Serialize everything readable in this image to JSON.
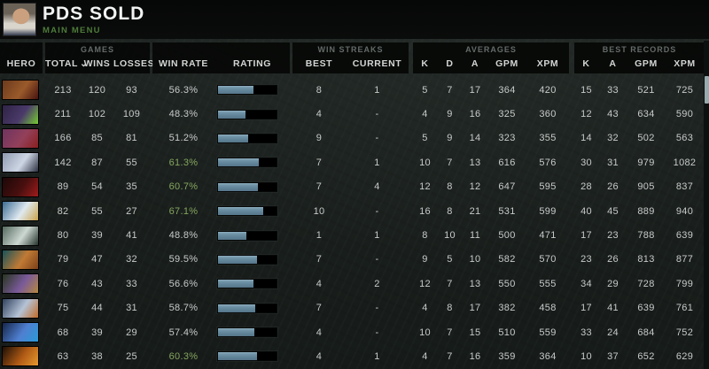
{
  "window": {
    "title": "PDS SOLD",
    "menu": "MAIN MENU"
  },
  "columns": {
    "hero": "HERO",
    "games_group": "GAMES",
    "total": "TOTAL",
    "sort_indicator": "⌄",
    "wins": "WINS",
    "losses": "LOSSES",
    "win_rate": "WIN RATE",
    "rating": "RATING",
    "streaks_group": "WIN STREAKS",
    "best": "BEST",
    "current": "CURRENT",
    "averages_group": "AVERAGES",
    "avg": [
      "K",
      "D",
      "A",
      "GPM",
      "XPM"
    ],
    "records_group": "BEST RECORDS",
    "rec": [
      "K",
      "A",
      "GPM",
      "XPM"
    ]
  },
  "colors": {
    "background": "#1b201e",
    "topbar": "#070808",
    "panel": "#050706",
    "row_text": "#c7cbc9",
    "win_rate_green": "#84a55e",
    "bar_fill": "#6d91a5",
    "menu_green": "#4e7b3a",
    "group_label": "#646b68",
    "column_label": "#d2d5d3",
    "scroll_thumb": "#97aaae",
    "avatar_colors": [
      "#6b6257",
      "#caa07f",
      "#d9d5cc",
      "#313a4e"
    ]
  },
  "rows": [
    {
      "total": 213,
      "wins": 120,
      "losses": 93,
      "win_rate": "56.3%",
      "green": false,
      "rating_pct": 60,
      "best": 8,
      "current": "1",
      "k": 5,
      "d": 7,
      "a": 17,
      "gpm": 364,
      "xpm": 420,
      "rk": 15,
      "ra": 33,
      "rgpm": 521,
      "rxpm": 725,
      "portrait": [
        "#6b3a1d",
        "#9a5a2a",
        "#471410"
      ]
    },
    {
      "total": 211,
      "wins": 102,
      "losses": 109,
      "win_rate": "48.3%",
      "green": false,
      "rating_pct": 47,
      "best": 4,
      "current": "-",
      "k": 4,
      "d": 9,
      "a": 16,
      "gpm": 325,
      "xpm": 360,
      "rk": 12,
      "ra": 43,
      "rgpm": 634,
      "rxpm": 590,
      "portrait": [
        "#2e2344",
        "#4a3a6a",
        "#77cc33"
      ]
    },
    {
      "total": 166,
      "wins": 85,
      "losses": 81,
      "win_rate": "51.2%",
      "green": false,
      "rating_pct": 52,
      "best": 9,
      "current": "-",
      "k": 5,
      "d": 9,
      "a": 14,
      "gpm": 323,
      "xpm": 355,
      "rk": 14,
      "ra": 32,
      "rgpm": 502,
      "rxpm": 563,
      "portrait": [
        "#6e3460",
        "#93405a",
        "#8a1f1f"
      ]
    },
    {
      "total": 142,
      "wins": 87,
      "losses": 55,
      "win_rate": "61.3%",
      "green": true,
      "rating_pct": 69,
      "best": 7,
      "current": "1",
      "k": 10,
      "d": 7,
      "a": 13,
      "gpm": 616,
      "xpm": 576,
      "rk": 30,
      "ra": 31,
      "rgpm": 979,
      "rxpm": 1082,
      "portrait": [
        "#8f9bb0",
        "#cdd6e4",
        "#2c3140"
      ]
    },
    {
      "total": 89,
      "wins": 54,
      "losses": 35,
      "win_rate": "60.7%",
      "green": true,
      "rating_pct": 68,
      "best": 7,
      "current": "4",
      "k": 12,
      "d": 8,
      "a": 12,
      "gpm": 647,
      "xpm": 595,
      "rk": 28,
      "ra": 26,
      "rgpm": 905,
      "rxpm": 837,
      "portrait": [
        "#1c0808",
        "#4a0f0f",
        "#a01c1c"
      ]
    },
    {
      "total": 82,
      "wins": 55,
      "losses": 27,
      "win_rate": "67.1%",
      "green": true,
      "rating_pct": 78,
      "best": 10,
      "current": "-",
      "k": 16,
      "d": 8,
      "a": 21,
      "gpm": 531,
      "xpm": 599,
      "rk": 40,
      "ra": 45,
      "rgpm": 889,
      "rxpm": 940,
      "portrait": [
        "#3b6c94",
        "#dfe9ef",
        "#caa24a"
      ]
    },
    {
      "total": 80,
      "wins": 39,
      "losses": 41,
      "win_rate": "48.8%",
      "green": false,
      "rating_pct": 48,
      "best": 1,
      "current": "1",
      "k": 8,
      "d": 10,
      "a": 11,
      "gpm": 500,
      "xpm": 471,
      "rk": 17,
      "ra": 23,
      "rgpm": 788,
      "rxpm": 639,
      "portrait": [
        "#55695f",
        "#cdd8d2",
        "#25332c"
      ]
    },
    {
      "total": 79,
      "wins": 47,
      "losses": 32,
      "win_rate": "59.5%",
      "green": false,
      "rating_pct": 66,
      "best": 7,
      "current": "-",
      "k": 9,
      "d": 5,
      "a": 10,
      "gpm": 582,
      "xpm": 570,
      "rk": 23,
      "ra": 26,
      "rgpm": 813,
      "rxpm": 877,
      "portrait": [
        "#17525a",
        "#c07a35",
        "#7a4018"
      ]
    },
    {
      "total": 76,
      "wins": 43,
      "losses": 33,
      "win_rate": "56.6%",
      "green": false,
      "rating_pct": 61,
      "best": 4,
      "current": "2",
      "k": 12,
      "d": 7,
      "a": 13,
      "gpm": 550,
      "xpm": 555,
      "rk": 34,
      "ra": 29,
      "rgpm": 728,
      "rxpm": 799,
      "portrait": [
        "#27351f",
        "#7a5a9a",
        "#b5893f"
      ]
    },
    {
      "total": 75,
      "wins": 44,
      "losses": 31,
      "win_rate": "58.7%",
      "green": false,
      "rating_pct": 64,
      "best": 7,
      "current": "-",
      "k": 4,
      "d": 8,
      "a": 17,
      "gpm": 382,
      "xpm": 458,
      "rk": 17,
      "ra": 41,
      "rgpm": 639,
      "rxpm": 761,
      "portrait": [
        "#31425e",
        "#b5c3d6",
        "#c06a28"
      ]
    },
    {
      "total": 68,
      "wins": 39,
      "losses": 29,
      "win_rate": "57.4%",
      "green": false,
      "rating_pct": 62,
      "best": 4,
      "current": "-",
      "k": 10,
      "d": 7,
      "a": 15,
      "gpm": 510,
      "xpm": 559,
      "rk": 33,
      "ra": 24,
      "rgpm": 684,
      "rxpm": 752,
      "portrait": [
        "#16264a",
        "#4f7fd0",
        "#2a9ad8"
      ]
    },
    {
      "total": 63,
      "wins": 38,
      "losses": 25,
      "win_rate": "60.3%",
      "green": true,
      "rating_pct": 67,
      "best": 4,
      "current": "1",
      "k": 4,
      "d": 7,
      "a": 16,
      "gpm": 359,
      "xpm": 364,
      "rk": 10,
      "ra": 37,
      "rgpm": 652,
      "rxpm": 629,
      "portrait": [
        "#1c0f06",
        "#b05a14",
        "#e89a30"
      ]
    }
  ]
}
